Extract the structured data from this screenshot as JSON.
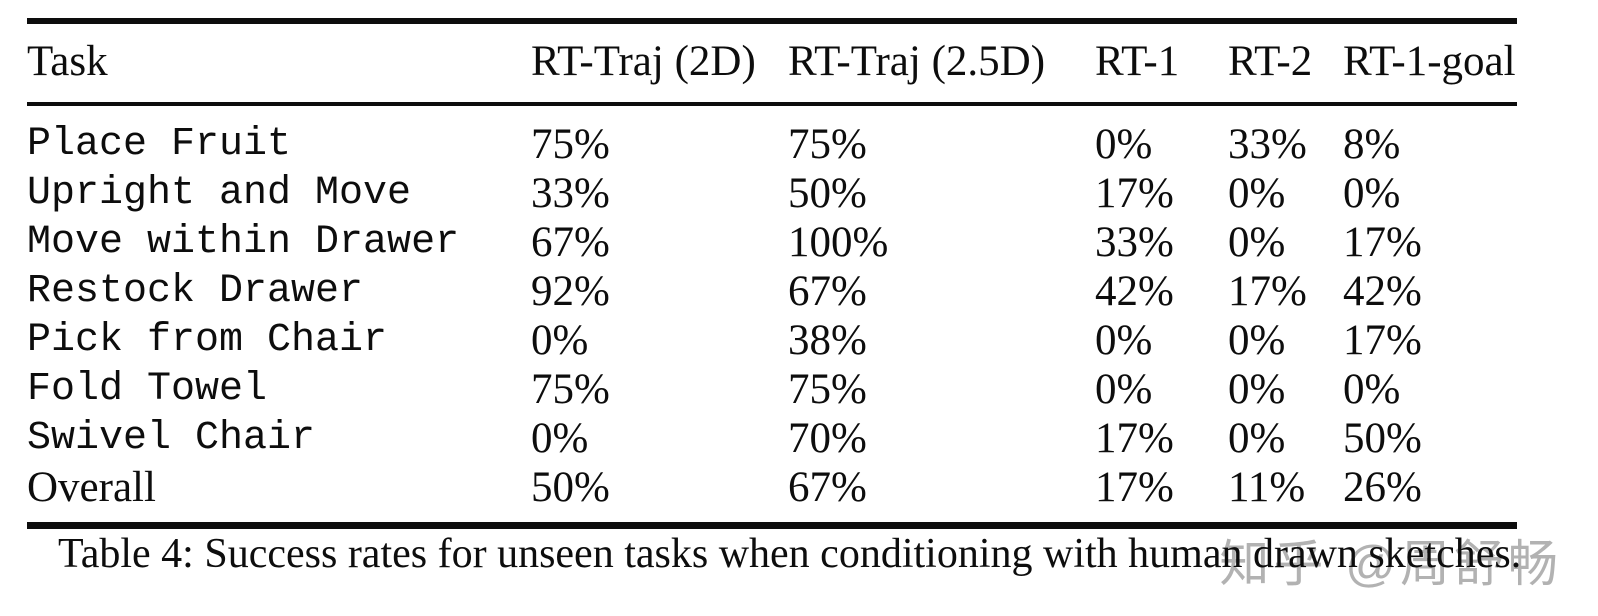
{
  "table": {
    "columns": [
      "Task",
      "RT-Traj (2D)",
      "RT-Traj (2.5D)",
      "RT-1",
      "RT-2",
      "RT-1-goal"
    ],
    "rows": [
      {
        "task": "Place Fruit",
        "values": [
          "75%",
          "75%",
          "0%",
          "33%",
          "8%"
        ]
      },
      {
        "task": "Upright and Move",
        "values": [
          "33%",
          "50%",
          "17%",
          "0%",
          "0%"
        ]
      },
      {
        "task": "Move within Drawer",
        "values": [
          "67%",
          "100%",
          "33%",
          "0%",
          "17%"
        ]
      },
      {
        "task": "Restock Drawer",
        "values": [
          "92%",
          "67%",
          "42%",
          "17%",
          "42%"
        ]
      },
      {
        "task": "Pick from Chair",
        "values": [
          "0%",
          "38%",
          "0%",
          "0%",
          "17%"
        ]
      },
      {
        "task": "Fold Towel",
        "values": [
          "75%",
          "75%",
          "0%",
          "0%",
          "0%"
        ]
      },
      {
        "task": "Swivel Chair",
        "values": [
          "0%",
          "70%",
          "17%",
          "0%",
          "50%"
        ]
      },
      {
        "task": "Overall",
        "values": [
          "50%",
          "67%",
          "17%",
          "11%",
          "26%"
        ]
      }
    ]
  },
  "caption": "Table 4: Success rates for unseen tasks when conditioning with human drawn sketches.",
  "watermark": "知乎 @周舒畅",
  "colors": {
    "text": "#0d0d0d",
    "rule": "#0d0d0d",
    "watermark": "#a4a4a4",
    "background": "#ffffff"
  }
}
